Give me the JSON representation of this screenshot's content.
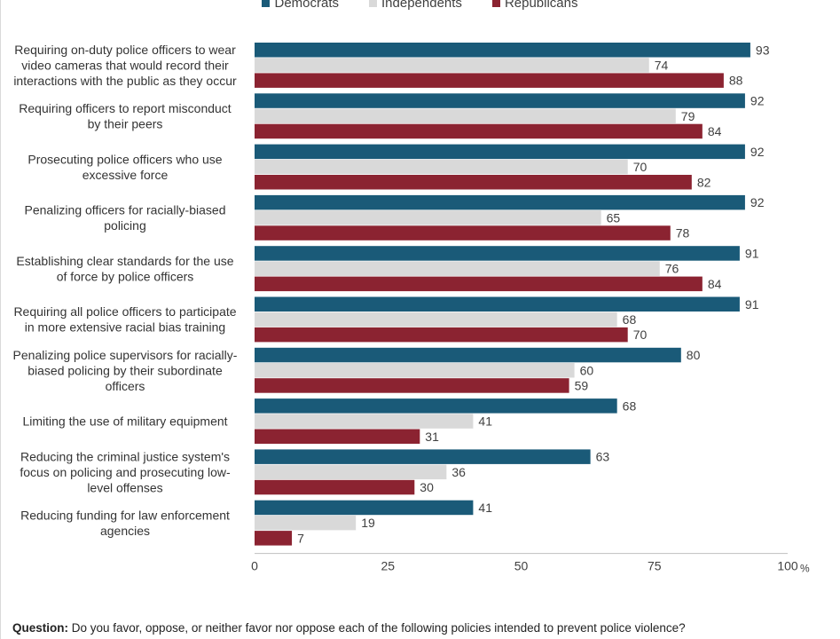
{
  "chart_data": {
    "type": "bar",
    "orientation": "horizontal",
    "categories": [
      "Requiring on-duty police officers to wear video cameras that would record their interactions with the public as they occur",
      "Requiring officers to report misconduct by their peers",
      "Prosecuting police officers who use excessive force",
      "Penalizing officers for racially-biased policing",
      "Establishing clear standards for the use of force by police officers",
      "Requiring all police officers to participate in more extensive racial bias training",
      "Penalizing police supervisors for racially-biased policing by their subordinate officers",
      "Limiting the use of military equipment",
      "Reducing the criminal justice system's focus on policing and prosecuting low-level offenses",
      "Reducing funding for law enforcement agencies"
    ],
    "category_lines": [
      [
        "Requiring on-duty police officers to wear",
        "video cameras that would record their",
        "interactions with the public as they occur"
      ],
      [
        "Requiring officers to report misconduct",
        "by their peers"
      ],
      [
        "Prosecuting police officers who use",
        "excessive force"
      ],
      [
        "Penalizing officers for racially-biased",
        "policing"
      ],
      [
        "Establishing clear standards for the use",
        "of force by police officers"
      ],
      [
        "Requiring all police officers to participate",
        "in more extensive racial bias training"
      ],
      [
        "Penalizing police supervisors for racially-",
        "biased policing by their subordinate",
        "officers"
      ],
      [
        "Limiting the use of military equipment"
      ],
      [
        "Reducing the criminal justice system's",
        "focus on policing and prosecuting low-",
        "level offenses"
      ],
      [
        "Reducing funding for law enforcement",
        "agencies"
      ]
    ],
    "series": [
      {
        "name": "Democrats",
        "color": "#1a5a78",
        "values": [
          93,
          92,
          92,
          92,
          91,
          91,
          80,
          68,
          63,
          41
        ]
      },
      {
        "name": "Independents",
        "color": "#d9d9d9",
        "values": [
          74,
          79,
          70,
          65,
          76,
          68,
          60,
          41,
          36,
          19
        ]
      },
      {
        "name": "Republicans",
        "color": "#8b2331",
        "values": [
          88,
          84,
          82,
          78,
          84,
          70,
          59,
          31,
          30,
          7
        ]
      }
    ],
    "xlim": [
      0,
      100
    ],
    "xticks": [
      "0",
      "25",
      "50",
      "75",
      "100"
    ],
    "x_unit": "%",
    "legend_position": "top",
    "grid": false
  },
  "footer": {
    "question_label": "Question:",
    "question_text": " Do you favor, oppose, or neither favor nor oppose each of the following policies  intended to prevent police violence?"
  }
}
